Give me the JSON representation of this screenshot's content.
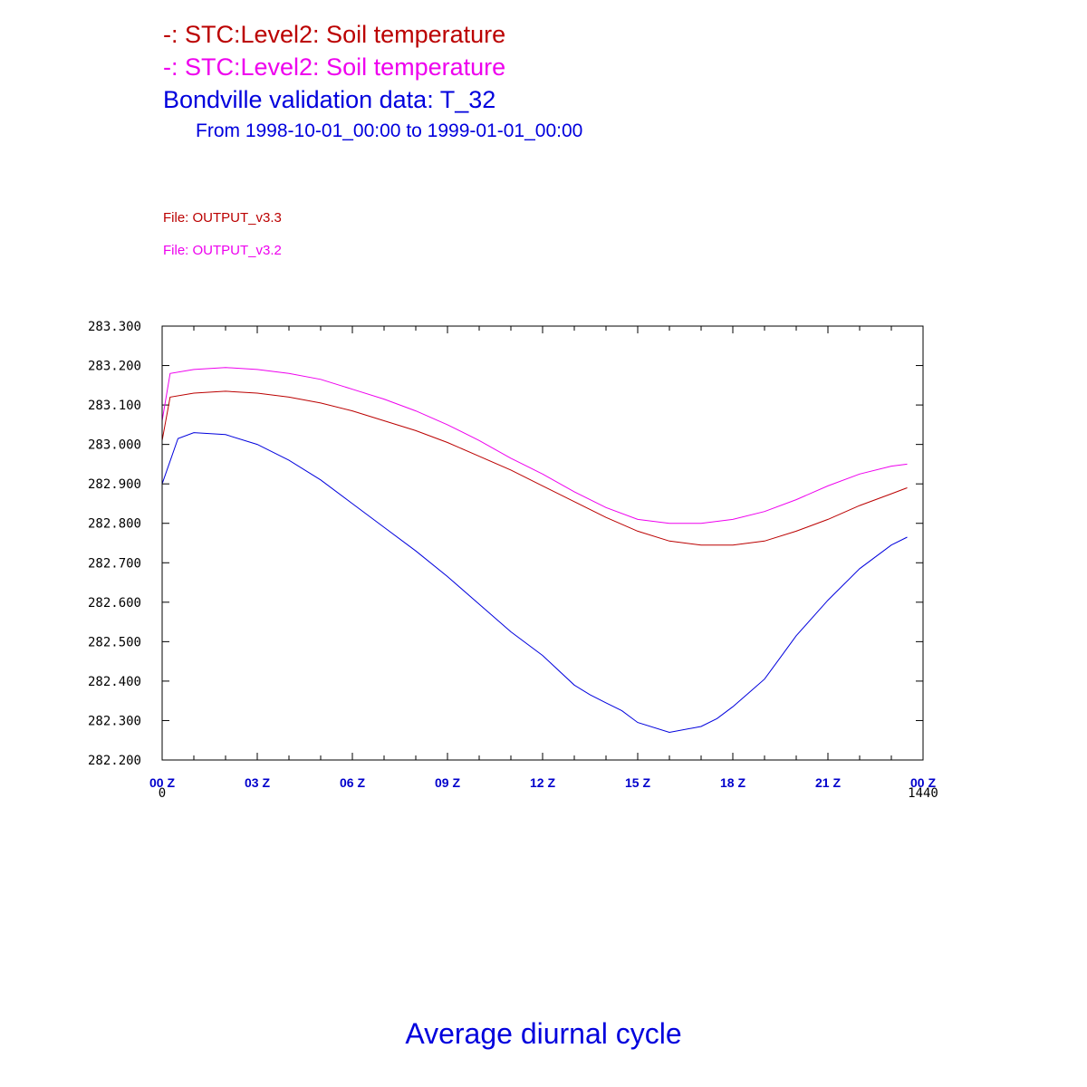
{
  "header": {
    "title_line1": "-: STC:Level2: Soil temperature",
    "title_line2": "-: STC:Level2: Soil temperature",
    "title_line3": "Bondville validation data: T_32",
    "date_range": "From 1998-10-01_00:00 to 1999-01-01_00:00"
  },
  "files": {
    "file1": "File: OUTPUT_v3.3",
    "file2": "File: OUTPUT_v3.2"
  },
  "footer": {
    "caption": "Average diurnal cycle"
  },
  "colors": {
    "series_v33": "#bb0000",
    "series_v32": "#ee00ee",
    "series_obs": "#0000dd",
    "axis_label": "#0000cc"
  },
  "chart_data": {
    "type": "line",
    "xlim": [
      0,
      1440
    ],
    "ylim": [
      282.2,
      283.3
    ],
    "y_ticks": [
      "283.300",
      "283.200",
      "283.100",
      "283.000",
      "282.900",
      "282.800",
      "282.700",
      "282.600",
      "282.500",
      "282.400",
      "282.300",
      "282.200"
    ],
    "x_tick_labels": [
      "00 Z",
      "03 Z",
      "06 Z",
      "09 Z",
      "12 Z",
      "15 Z",
      "18 Z",
      "21 Z",
      "00 Z"
    ],
    "x_range_labels": [
      "0",
      "1440"
    ],
    "series": [
      {
        "color": "#bb0000",
        "x": [
          0,
          15,
          60,
          120,
          180,
          240,
          300,
          360,
          420,
          480,
          540,
          600,
          660,
          720,
          780,
          840,
          900,
          960,
          1020,
          1080,
          1140,
          1200,
          1260,
          1320,
          1380,
          1410
        ],
        "y": [
          283.01,
          283.12,
          283.13,
          283.135,
          283.13,
          283.12,
          283.105,
          283.085,
          283.06,
          283.035,
          283.005,
          282.97,
          282.935,
          282.895,
          282.855,
          282.815,
          282.78,
          282.755,
          282.745,
          282.745,
          282.755,
          282.78,
          282.81,
          282.845,
          282.875,
          282.89
        ]
      },
      {
        "color": "#ee00ee",
        "x": [
          0,
          15,
          60,
          120,
          180,
          240,
          300,
          360,
          420,
          480,
          540,
          600,
          660,
          720,
          780,
          840,
          900,
          960,
          1020,
          1080,
          1140,
          1200,
          1260,
          1320,
          1380,
          1410
        ],
        "y": [
          283.06,
          283.18,
          283.19,
          283.195,
          283.19,
          283.18,
          283.165,
          283.14,
          283.115,
          283.085,
          283.05,
          283.01,
          282.965,
          282.925,
          282.88,
          282.84,
          282.81,
          282.8,
          282.8,
          282.81,
          282.83,
          282.86,
          282.895,
          282.925,
          282.945,
          282.95
        ]
      },
      {
        "color": "#0000dd",
        "x": [
          0,
          30,
          60,
          120,
          180,
          240,
          300,
          360,
          420,
          480,
          540,
          600,
          660,
          720,
          780,
          810,
          840,
          870,
          900,
          960,
          1020,
          1050,
          1080,
          1110,
          1140,
          1170,
          1200,
          1260,
          1320,
          1380,
          1410
        ],
        "y": [
          282.9,
          283.015,
          283.03,
          283.025,
          283.0,
          282.96,
          282.91,
          282.85,
          282.79,
          282.73,
          282.665,
          282.595,
          282.525,
          282.465,
          282.39,
          282.365,
          282.345,
          282.325,
          282.295,
          282.27,
          282.285,
          282.305,
          282.335,
          282.37,
          282.405,
          282.46,
          282.515,
          282.605,
          282.685,
          282.745,
          282.765
        ]
      }
    ]
  }
}
